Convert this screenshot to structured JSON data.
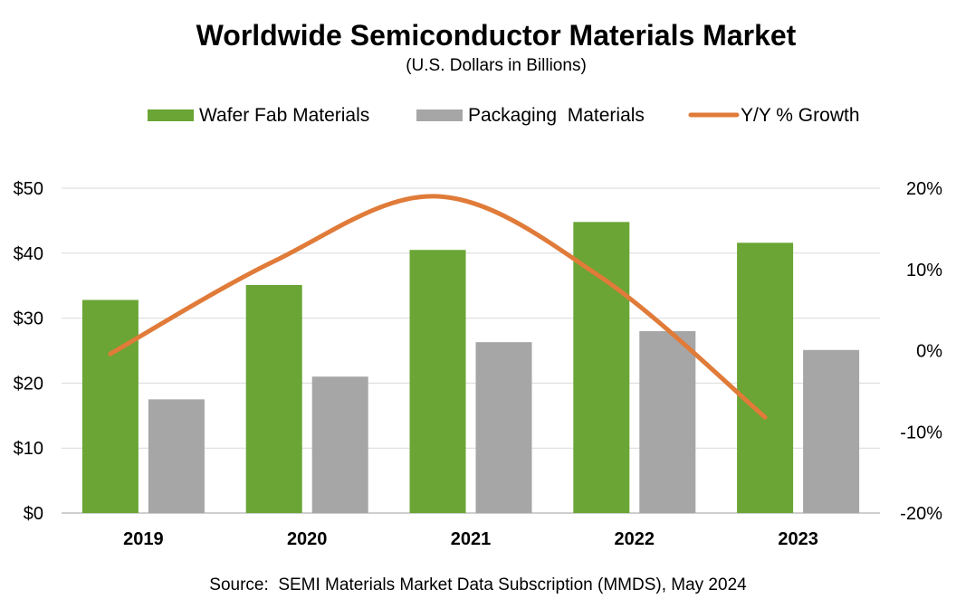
{
  "chart_data": {
    "type": "bar",
    "title": "Worldwide Semiconductor Materials Market",
    "subtitle": "(U.S. Dollars in Billions)",
    "source": "Source:  SEMI Materials Market Data Subscription (MMDS), May 2024",
    "categories": [
      "2019",
      "2020",
      "2021",
      "2022",
      "2023"
    ],
    "series": [
      {
        "name": "Wafer Fab Materials",
        "type": "bar",
        "axis": "left",
        "color": "#6AA535",
        "values": [
          32.8,
          35.1,
          40.5,
          44.8,
          41.6
        ]
      },
      {
        "name": "Packaging  Materials",
        "type": "bar",
        "axis": "left",
        "color": "#A6A6A6",
        "values": [
          17.5,
          21.0,
          26.3,
          28.0,
          25.1
        ]
      },
      {
        "name": "Y/Y % Growth",
        "type": "line",
        "axis": "right",
        "color": "#E07B39",
        "values": [
          -0.4,
          11.0,
          19.0,
          9.0,
          -8.2
        ]
      }
    ],
    "left_axis": {
      "ylim": [
        0,
        50
      ],
      "ticks": [
        0,
        10,
        20,
        30,
        40,
        50
      ],
      "tick_labels": [
        "$0",
        "$10",
        "$20",
        "$30",
        "$40",
        "$50"
      ]
    },
    "right_axis": {
      "ylim": [
        -20,
        20
      ],
      "ticks": [
        -20,
        -10,
        0,
        10,
        20
      ],
      "tick_labels": [
        "-20%",
        "-10%",
        "0%",
        "10%",
        "20%"
      ]
    },
    "grid": true,
    "legend_position": "top"
  }
}
